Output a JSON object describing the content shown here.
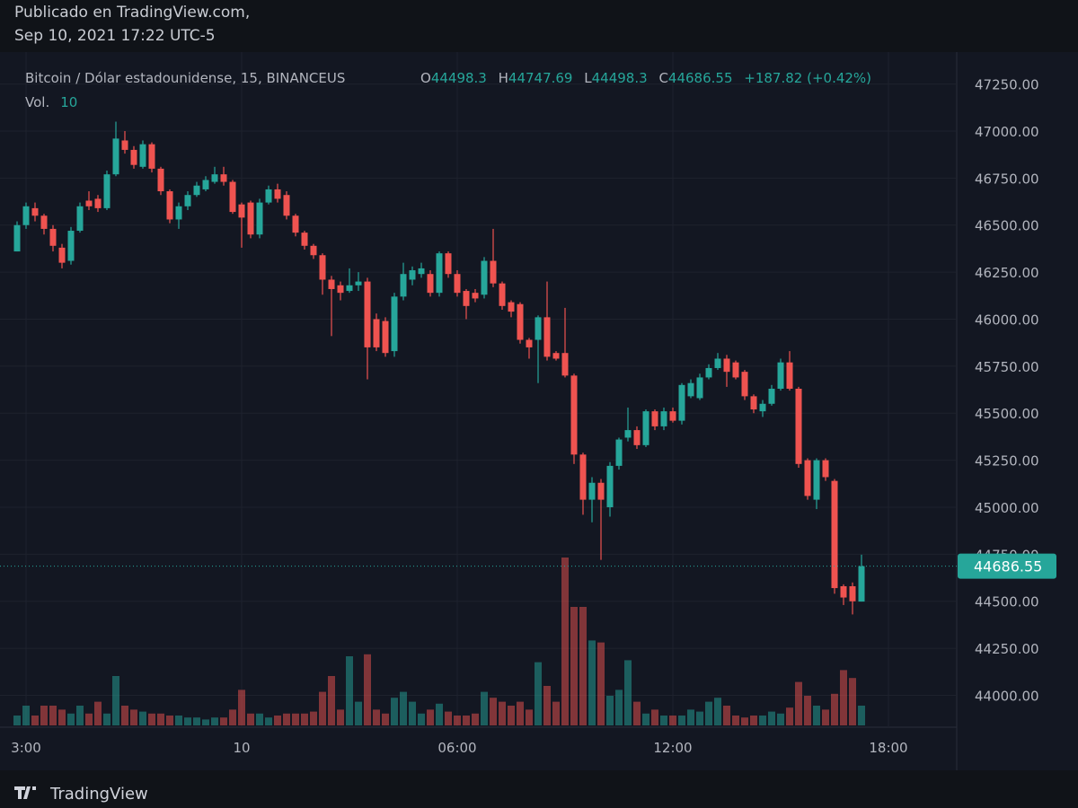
{
  "header": {
    "published": "Publicado en TradingView.com,",
    "date": "Sep 10, 2021 17:22 UTC-5"
  },
  "footer": {
    "brand": "TradingView"
  },
  "chart_data": {
    "type": "candlestick",
    "symbol": "Bitcoin / Dólar estadounidense, 15, BINANCEUS",
    "o_label": "O",
    "h_label": "H",
    "l_label": "L",
    "c_label": "C",
    "change": "+187.82 (+0.42%)",
    "volume_label": "Vol.",
    "up_color": "#26a69a",
    "down_color": "#ef5350",
    "grid": true,
    "xlim": [
      -0.4,
      104.6
    ],
    "xticks": [
      {
        "value": 1,
        "label": "3:00"
      },
      {
        "value": 25,
        "label": "10"
      },
      {
        "value": 49,
        "label": "06:00"
      },
      {
        "value": 73,
        "label": "12:00"
      },
      {
        "value": 97,
        "label": "18:00"
      }
    ],
    "ylim": [
      43840,
      47420
    ],
    "yticks": [
      {
        "value": 44000,
        "label": "44000.00"
      },
      {
        "value": 44250,
        "label": "44250.00"
      },
      {
        "value": 44500,
        "label": "44500.00"
      },
      {
        "value": 44750,
        "label": "44750.00"
      },
      {
        "value": 45000,
        "label": "45000.00"
      },
      {
        "value": 45250,
        "label": "45250.00"
      },
      {
        "value": 45500,
        "label": "45500.00"
      },
      {
        "value": 45750,
        "label": "45750.00"
      },
      {
        "value": 46000,
        "label": "46000.00"
      },
      {
        "value": 46250,
        "label": "46250.00"
      },
      {
        "value": 46500,
        "label": "46500.00"
      },
      {
        "value": 46750,
        "label": "46750.00"
      },
      {
        "value": 47000,
        "label": "47000.00"
      },
      {
        "value": 47250,
        "label": "47250.00"
      }
    ],
    "x": [
      0,
      1,
      2,
      3,
      4,
      5,
      6,
      7,
      8,
      9,
      10,
      11,
      12,
      13,
      14,
      15,
      16,
      17,
      18,
      19,
      20,
      21,
      22,
      23,
      24,
      25,
      26,
      27,
      28,
      29,
      30,
      31,
      32,
      33,
      34,
      35,
      36,
      37,
      38,
      39,
      40,
      41,
      42,
      43,
      44,
      45,
      46,
      47,
      48,
      49,
      50,
      51,
      52,
      53,
      54,
      55,
      56,
      57,
      58,
      59,
      60,
      61,
      62,
      63,
      64,
      65,
      66,
      67,
      68,
      69,
      70,
      71,
      72,
      73,
      74,
      75,
      76,
      77,
      78,
      79,
      80,
      81,
      82,
      83,
      84,
      85,
      86,
      87,
      88,
      89,
      90,
      91,
      92,
      93,
      94
    ],
    "open": [
      46360,
      46500,
      46590,
      46550,
      46480,
      46380,
      46310,
      46470,
      46630,
      46640,
      46590,
      46770,
      46950,
      46900,
      46810,
      46930,
      46800,
      46680,
      46530,
      46600,
      46660,
      46690,
      46730,
      46770,
      46730,
      46610,
      46620,
      46450,
      46620,
      46690,
      46660,
      46550,
      46460,
      46390,
      46340,
      46210,
      46180,
      46150,
      46180,
      46200,
      46000,
      45990,
      45830,
      46120,
      46210,
      46240,
      46240,
      46140,
      46350,
      46240,
      46150,
      46140,
      46130,
      46310,
      46190,
      46090,
      46080,
      45890,
      45890,
      46010,
      45820,
      45820,
      45700,
      45280,
      45040,
      45130,
      45000,
      45220,
      45370,
      45410,
      45330,
      45510,
      45430,
      45510,
      45460,
      45590,
      45580,
      45690,
      45740,
      45790,
      45770,
      45720,
      45590,
      45510,
      45550,
      45630,
      45770,
      45630,
      45250,
      45040,
      45250,
      45140,
      44580,
      44580,
      44498.3
    ],
    "high": [
      46520,
      46620,
      46620,
      46560,
      46500,
      46400,
      46490,
      46620,
      46680,
      46660,
      46790,
      47050,
      47000,
      46920,
      46950,
      46940,
      46810,
      46690,
      46620,
      46680,
      46730,
      46760,
      46810,
      46810,
      46740,
      46620,
      46630,
      46640,
      46710,
      46720,
      46680,
      46560,
      46470,
      46400,
      46350,
      46230,
      46200,
      46270,
      46250,
      46220,
      46030,
      46010,
      46140,
      46300,
      46280,
      46300,
      46260,
      46360,
      46360,
      46260,
      46160,
      46160,
      46330,
      46480,
      46200,
      46100,
      46090,
      45900,
      46020,
      46200,
      45830,
      46060,
      45710,
      45290,
      45160,
      45150,
      45240,
      45370,
      45530,
      45430,
      45520,
      45520,
      45530,
      45530,
      45660,
      45680,
      45710,
      45760,
      45820,
      45810,
      45780,
      45730,
      45600,
      45570,
      45650,
      45790,
      45830,
      45640,
      45260,
      45260,
      45260,
      45150,
      44590,
      44600,
      44747.69
    ],
    "low": [
      46360,
      46480,
      46520,
      46450,
      46360,
      46270,
      46290,
      46460,
      46580,
      46570,
      46580,
      46760,
      46880,
      46800,
      46800,
      46780,
      46660,
      46510,
      46480,
      46580,
      46650,
      46680,
      46720,
      46710,
      46560,
      46380,
      46430,
      46430,
      46610,
      46620,
      46530,
      46440,
      46370,
      46320,
      46130,
      45910,
      46100,
      46140,
      46150,
      45680,
      45830,
      45800,
      45800,
      46100,
      46180,
      46220,
      46120,
      46120,
      46220,
      46120,
      46000,
      46090,
      46110,
      46170,
      46050,
      46010,
      45870,
      45790,
      45660,
      45780,
      45780,
      45690,
      45230,
      44960,
      44920,
      44720,
      44950,
      45200,
      45350,
      45310,
      45320,
      45410,
      45410,
      45450,
      45440,
      45580,
      45570,
      45680,
      45730,
      45640,
      45680,
      45570,
      45500,
      45480,
      45540,
      45620,
      45620,
      45210,
      45040,
      44990,
      45140,
      44540,
      44480,
      44430,
      44498.3
    ],
    "close": [
      46500,
      46600,
      46550,
      46480,
      46390,
      46300,
      46470,
      46600,
      46600,
      46590,
      46770,
      46960,
      46900,
      46820,
      46930,
      46800,
      46680,
      46530,
      46600,
      46660,
      46710,
      46740,
      46770,
      46730,
      46570,
      46540,
      46450,
      46620,
      46690,
      46640,
      46550,
      46460,
      46390,
      46340,
      46210,
      46160,
      46140,
      46180,
      46200,
      45850,
      45850,
      45820,
      46120,
      46240,
      46260,
      46270,
      46140,
      46350,
      46240,
      46140,
      46070,
      46110,
      46310,
      46190,
      46070,
      46040,
      45890,
      45850,
      46010,
      45800,
      45790,
      45700,
      45280,
      45040,
      45130,
      45040,
      45220,
      45360,
      45410,
      45330,
      45510,
      45430,
      45510,
      45460,
      45650,
      45660,
      45690,
      45740,
      45790,
      45720,
      45690,
      45590,
      45520,
      45550,
      45630,
      45770,
      45630,
      45230,
      45060,
      45250,
      45160,
      44570,
      44520,
      44500,
      44686.55
    ],
    "volume": [
      5,
      10,
      5,
      10,
      10,
      8,
      6,
      10,
      6,
      12,
      6,
      25,
      10,
      8,
      7,
      6,
      6,
      5,
      5,
      4,
      4,
      3,
      4,
      4,
      8,
      18,
      6,
      6,
      4,
      5,
      6,
      6,
      6,
      7,
      17,
      25,
      8,
      35,
      12,
      36,
      8,
      6,
      14,
      17,
      12,
      6,
      8,
      11,
      7,
      5,
      5,
      6,
      17,
      14,
      12,
      10,
      12,
      8,
      32,
      20,
      12,
      85,
      60,
      60,
      43,
      42,
      15,
      18,
      33,
      12,
      6,
      8,
      5,
      5,
      5,
      8,
      7,
      12,
      14,
      10,
      5,
      4,
      5,
      5,
      7,
      6,
      9,
      22,
      15,
      10,
      8,
      16,
      28,
      24,
      10
    ]
  }
}
